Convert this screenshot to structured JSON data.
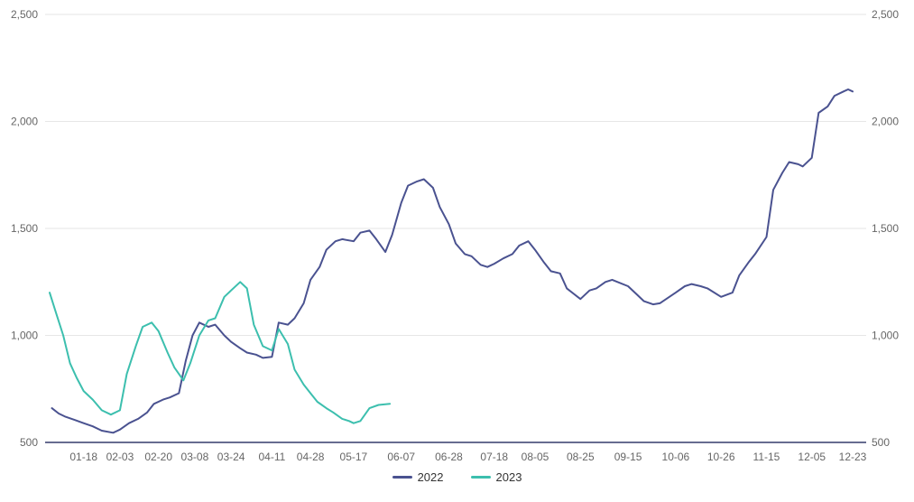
{
  "chart_data": {
    "type": "line",
    "title": "",
    "xlabel": "",
    "ylabel": "",
    "ylim": [
      500,
      2500
    ],
    "y_ticks": [
      "500",
      "1,000",
      "1,500",
      "2,000",
      "2,500"
    ],
    "y_tick_values": [
      500,
      1000,
      1500,
      2000,
      2500
    ],
    "grid": "horizontal",
    "legend_position": "bottom",
    "x_tick_labels": [
      "01-18",
      "02-03",
      "02-20",
      "03-08",
      "03-24",
      "04-11",
      "04-28",
      "05-17",
      "06-07",
      "06-28",
      "07-18",
      "08-05",
      "08-25",
      "09-15",
      "10-06",
      "10-26",
      "11-15",
      "12-05",
      "12-23"
    ],
    "series": [
      {
        "name": "2022",
        "color": "#4a5290",
        "x": [
          "01-04",
          "01-07",
          "01-10",
          "01-14",
          "01-18",
          "01-22",
          "01-26",
          "01-31",
          "02-03",
          "02-07",
          "02-11",
          "02-15",
          "02-18",
          "02-22",
          "02-25",
          "03-01",
          "03-04",
          "03-07",
          "03-10",
          "03-14",
          "03-17",
          "03-21",
          "03-24",
          "03-28",
          "03-31",
          "04-04",
          "04-07",
          "04-11",
          "04-14",
          "04-18",
          "04-21",
          "04-25",
          "04-28",
          "05-02",
          "05-05",
          "05-09",
          "05-12",
          "05-17",
          "05-20",
          "05-24",
          "05-27",
          "05-31",
          "06-03",
          "06-07",
          "06-10",
          "06-14",
          "06-17",
          "06-21",
          "06-24",
          "06-28",
          "07-01",
          "07-05",
          "07-08",
          "07-12",
          "07-15",
          "07-18",
          "07-22",
          "07-26",
          "07-29",
          "08-02",
          "08-05",
          "08-09",
          "08-12",
          "08-16",
          "08-19",
          "08-25",
          "08-29",
          "09-01",
          "09-05",
          "09-08",
          "09-15",
          "09-19",
          "09-22",
          "09-26",
          "09-29",
          "10-06",
          "10-10",
          "10-13",
          "10-17",
          "10-20",
          "10-26",
          "10-31",
          "11-03",
          "11-07",
          "11-10",
          "11-15",
          "11-18",
          "11-22",
          "11-25",
          "11-29",
          "12-01",
          "12-05",
          "12-08",
          "12-12",
          "12-15",
          "12-19",
          "12-21",
          "12-23"
        ],
        "values": [
          660,
          635,
          620,
          605,
          590,
          575,
          555,
          545,
          560,
          590,
          610,
          640,
          680,
          700,
          710,
          730,
          880,
          1000,
          1060,
          1040,
          1050,
          1000,
          970,
          940,
          920,
          910,
          895,
          900,
          1060,
          1050,
          1080,
          1150,
          1260,
          1320,
          1400,
          1440,
          1450,
          1440,
          1480,
          1490,
          1450,
          1390,
          1470,
          1620,
          1700,
          1720,
          1730,
          1690,
          1600,
          1520,
          1430,
          1380,
          1370,
          1330,
          1320,
          1335,
          1360,
          1380,
          1420,
          1440,
          1400,
          1340,
          1300,
          1290,
          1220,
          1170,
          1210,
          1220,
          1250,
          1260,
          1230,
          1190,
          1160,
          1145,
          1150,
          1200,
          1230,
          1240,
          1230,
          1220,
          1180,
          1200,
          1280,
          1340,
          1380,
          1460,
          1680,
          1760,
          1810,
          1800,
          1790,
          1830,
          2040,
          2070,
          2120,
          2140,
          2150,
          2140
        ]
      },
      {
        "name": "2023",
        "color": "#3cbfae",
        "x": [
          "01-03",
          "01-06",
          "01-09",
          "01-12",
          "01-15",
          "01-18",
          "01-22",
          "01-26",
          "01-30",
          "02-03",
          "02-06",
          "02-10",
          "02-13",
          "02-17",
          "02-20",
          "02-24",
          "02-27",
          "03-03",
          "03-06",
          "03-10",
          "03-14",
          "03-17",
          "03-21",
          "03-24",
          "03-28",
          "03-31",
          "04-03",
          "04-07",
          "04-11",
          "04-14",
          "04-18",
          "04-21",
          "04-25",
          "04-28",
          "05-01",
          "05-05",
          "05-08",
          "05-12",
          "05-15",
          "05-17",
          "05-20",
          "05-24",
          "05-28",
          "06-02"
        ],
        "values": [
          1200,
          1100,
          1000,
          870,
          800,
          740,
          700,
          650,
          630,
          650,
          820,
          950,
          1040,
          1060,
          1020,
          920,
          850,
          790,
          870,
          1000,
          1070,
          1080,
          1180,
          1210,
          1250,
          1220,
          1050,
          950,
          930,
          1030,
          960,
          840,
          770,
          730,
          690,
          660,
          640,
          610,
          600,
          590,
          600,
          660,
          675,
          680
        ]
      }
    ]
  }
}
